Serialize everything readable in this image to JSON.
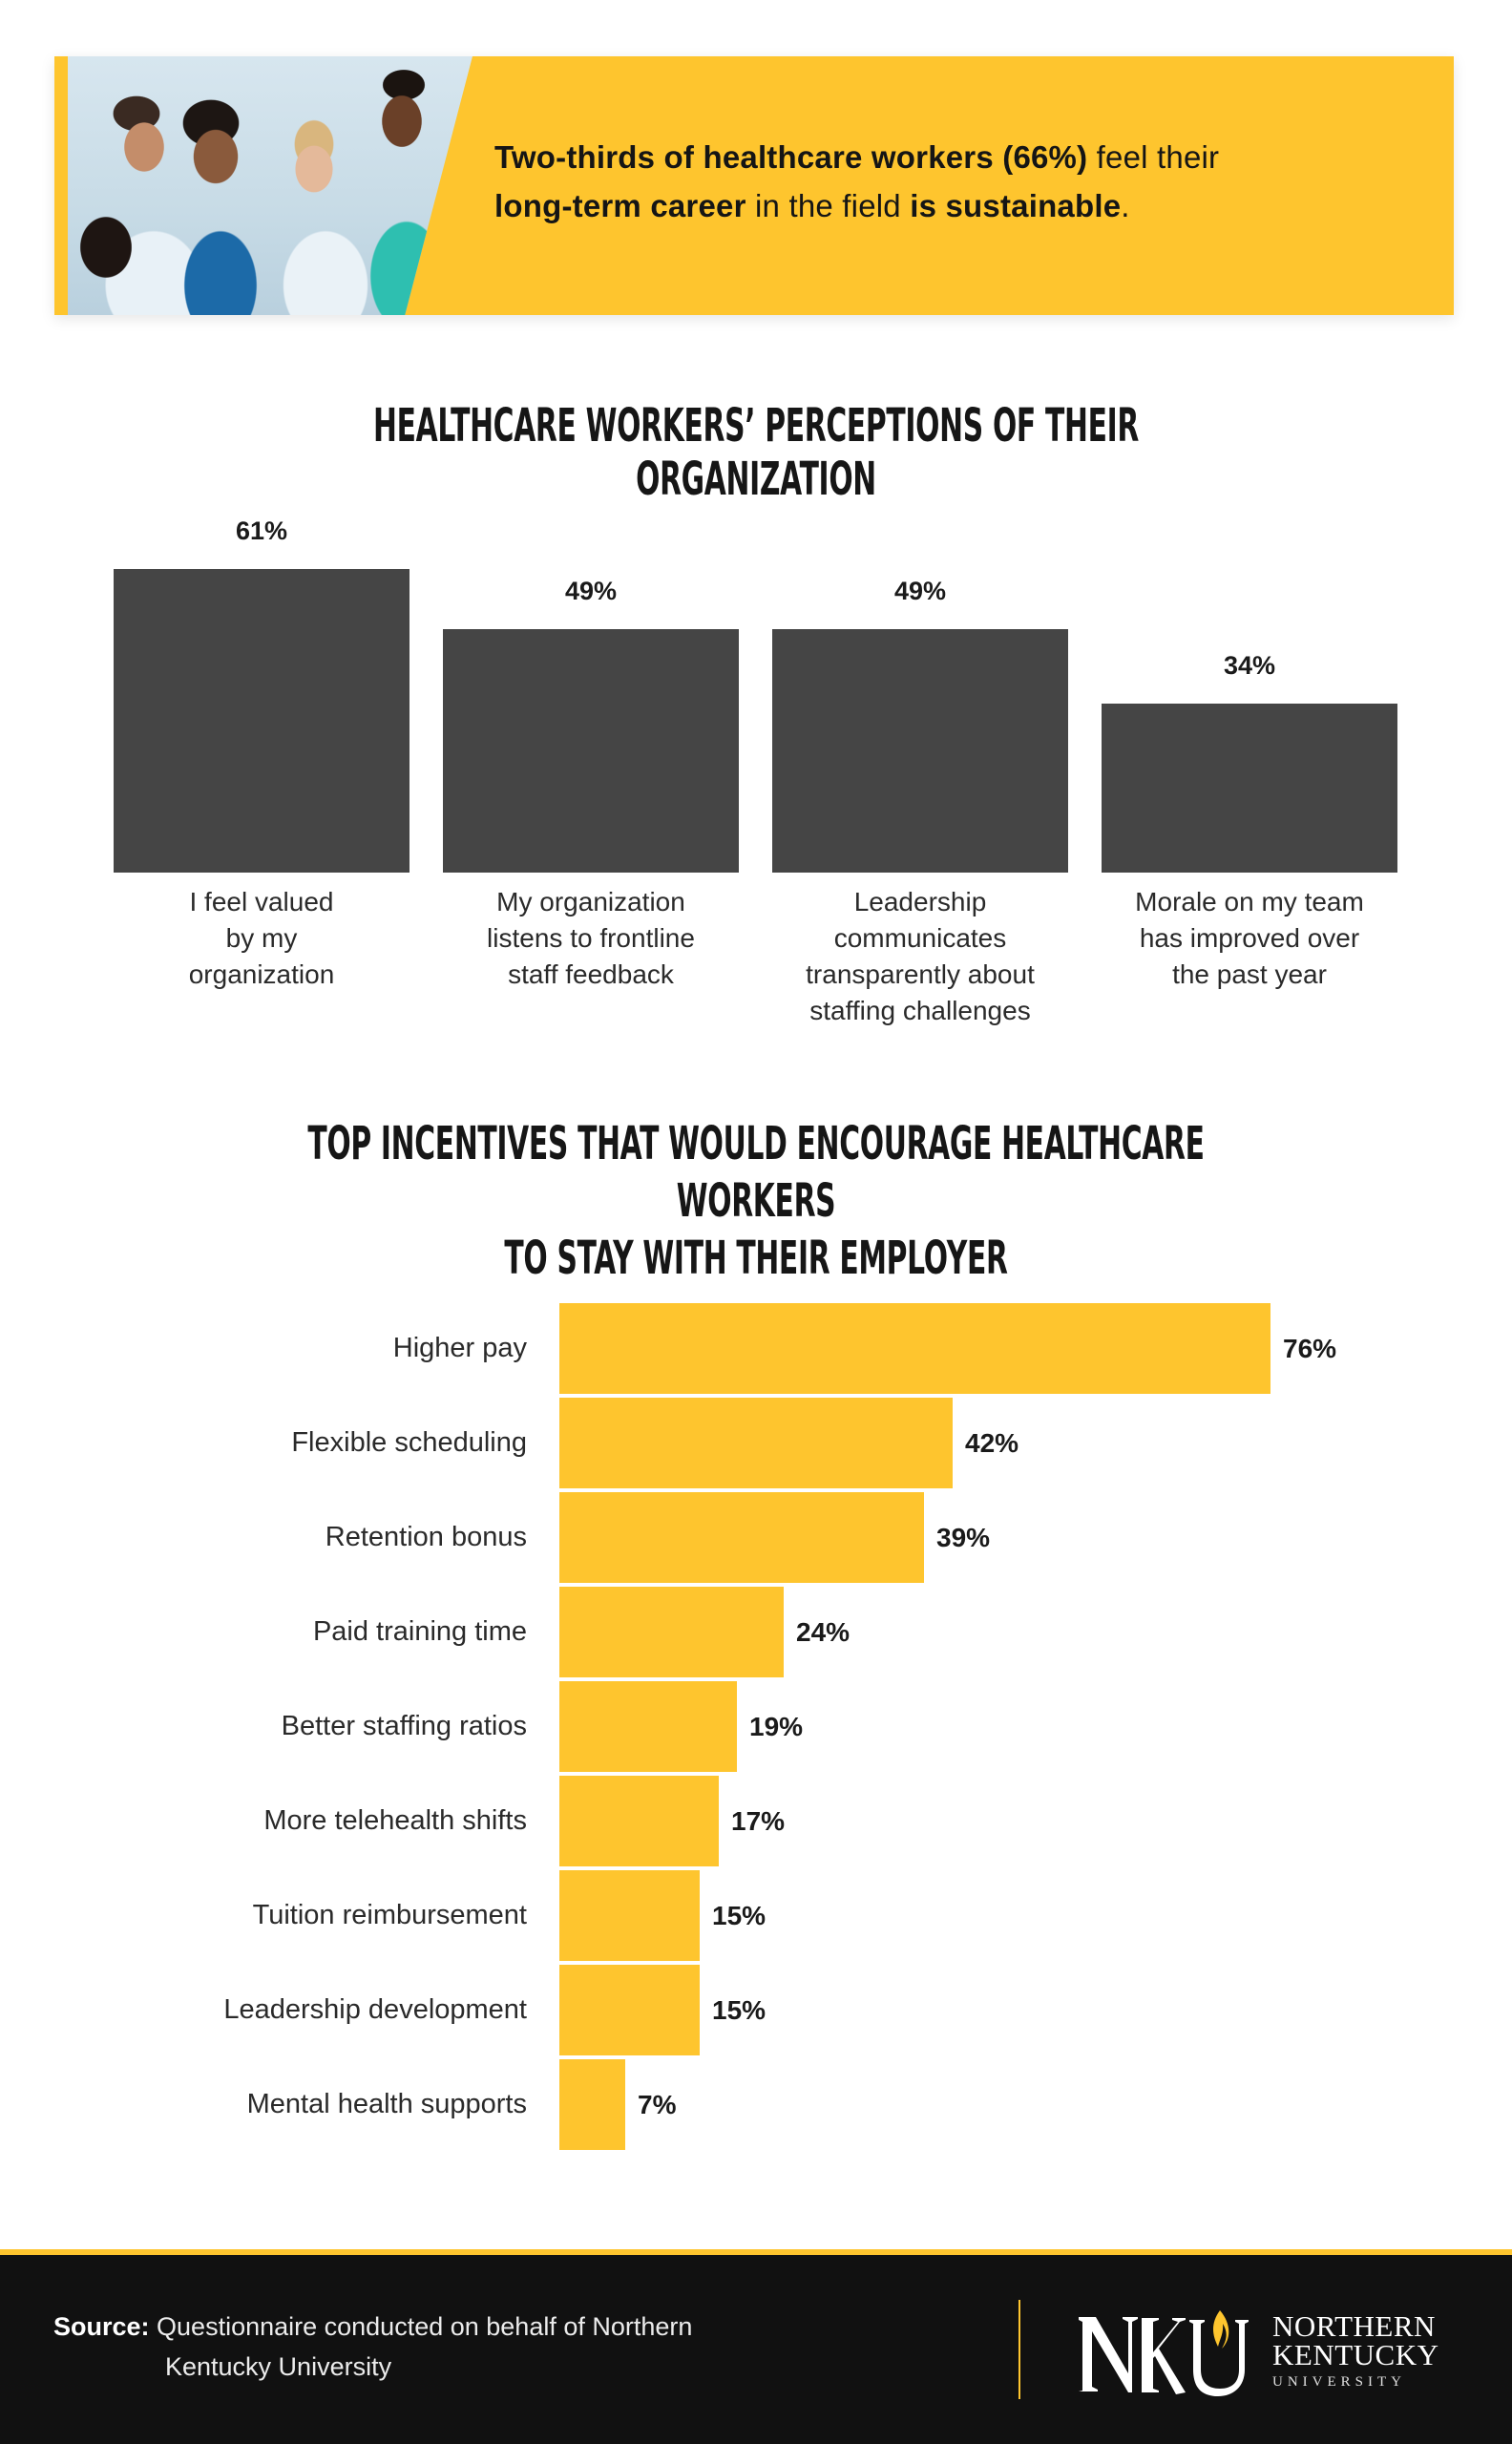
{
  "banner": {
    "photo_alt": "healthcare-workers-high-five-photo",
    "text_parts": [
      {
        "text": "Two-thirds of healthcare workers (66%)",
        "bold": true
      },
      {
        "text": " feel their ",
        "bold": false
      },
      {
        "text": "long-term career",
        "bold": true
      },
      {
        "text": " in the field ",
        "bold": false
      },
      {
        "text": "is sustainable",
        "bold": true
      },
      {
        "text": ".",
        "bold": false
      }
    ],
    "background_color": "#fec52e"
  },
  "section1": {
    "title": "Healthcare workers’ perceptions of their organization"
  },
  "section2": {
    "title_line1": "Top incentives that would encourage healthcare workers",
    "title_line2": "to stay with their employer"
  },
  "footer": {
    "source_label": "Source:",
    "source_line1": " Questionnaire conducted on behalf of Northern",
    "source_line2": "Kentucky University",
    "logo": {
      "mark": "NKU",
      "line1": "NORTHERN",
      "line2": "KENTUCKY",
      "line3": "UNIVERSITY",
      "flame_color": "#fec52e"
    }
  },
  "colors": {
    "accent_yellow": "#fec52e",
    "bar_dark": "#454545",
    "footer_bg": "#111111"
  },
  "chart_data": [
    {
      "type": "bar",
      "orientation": "vertical",
      "title": "Healthcare Workers’ Perceptions of Their Organization",
      "categories": [
        "I feel valued by my organization",
        "My organization listens to frontline staff feedback",
        "Leadership communicates transparently about staffing challenges",
        "Morale on my team has improved over the past year"
      ],
      "category_lines": [
        [
          "I feel valued",
          "by my",
          "organization"
        ],
        [
          "My organization",
          "listens to frontline",
          "staff feedback"
        ],
        [
          "Leadership",
          "communicates",
          "transparently about",
          "staffing challenges"
        ],
        [
          "Morale on my team",
          "has improved over",
          "the past year"
        ]
      ],
      "values": [
        61,
        49,
        49,
        34
      ],
      "value_labels": [
        "61%",
        "49%",
        "49%",
        "34%"
      ],
      "unit": "%",
      "xlabel": "",
      "ylabel": "",
      "grid": false,
      "legend": "none",
      "color": "#454545"
    },
    {
      "type": "bar",
      "orientation": "horizontal",
      "title": "Top Incentives That Would Encourage Healthcare Workers to Stay With Their Employer",
      "categories": [
        "Higher pay",
        "Flexible scheduling",
        "Retention bonus",
        "Paid training time",
        "Better staffing ratios",
        "More telehealth shifts",
        "Tuition reimbursement",
        "Leadership development",
        "Mental health supports"
      ],
      "values": [
        76,
        42,
        39,
        24,
        19,
        17,
        15,
        15,
        7
      ],
      "value_labels": [
        "76%",
        "42%",
        "39%",
        "24%",
        "19%",
        "17%",
        "15%",
        "15%",
        "7%"
      ],
      "unit": "%",
      "xlabel": "",
      "ylabel": "",
      "grid": false,
      "legend": "none",
      "color": "#fec52e"
    }
  ]
}
